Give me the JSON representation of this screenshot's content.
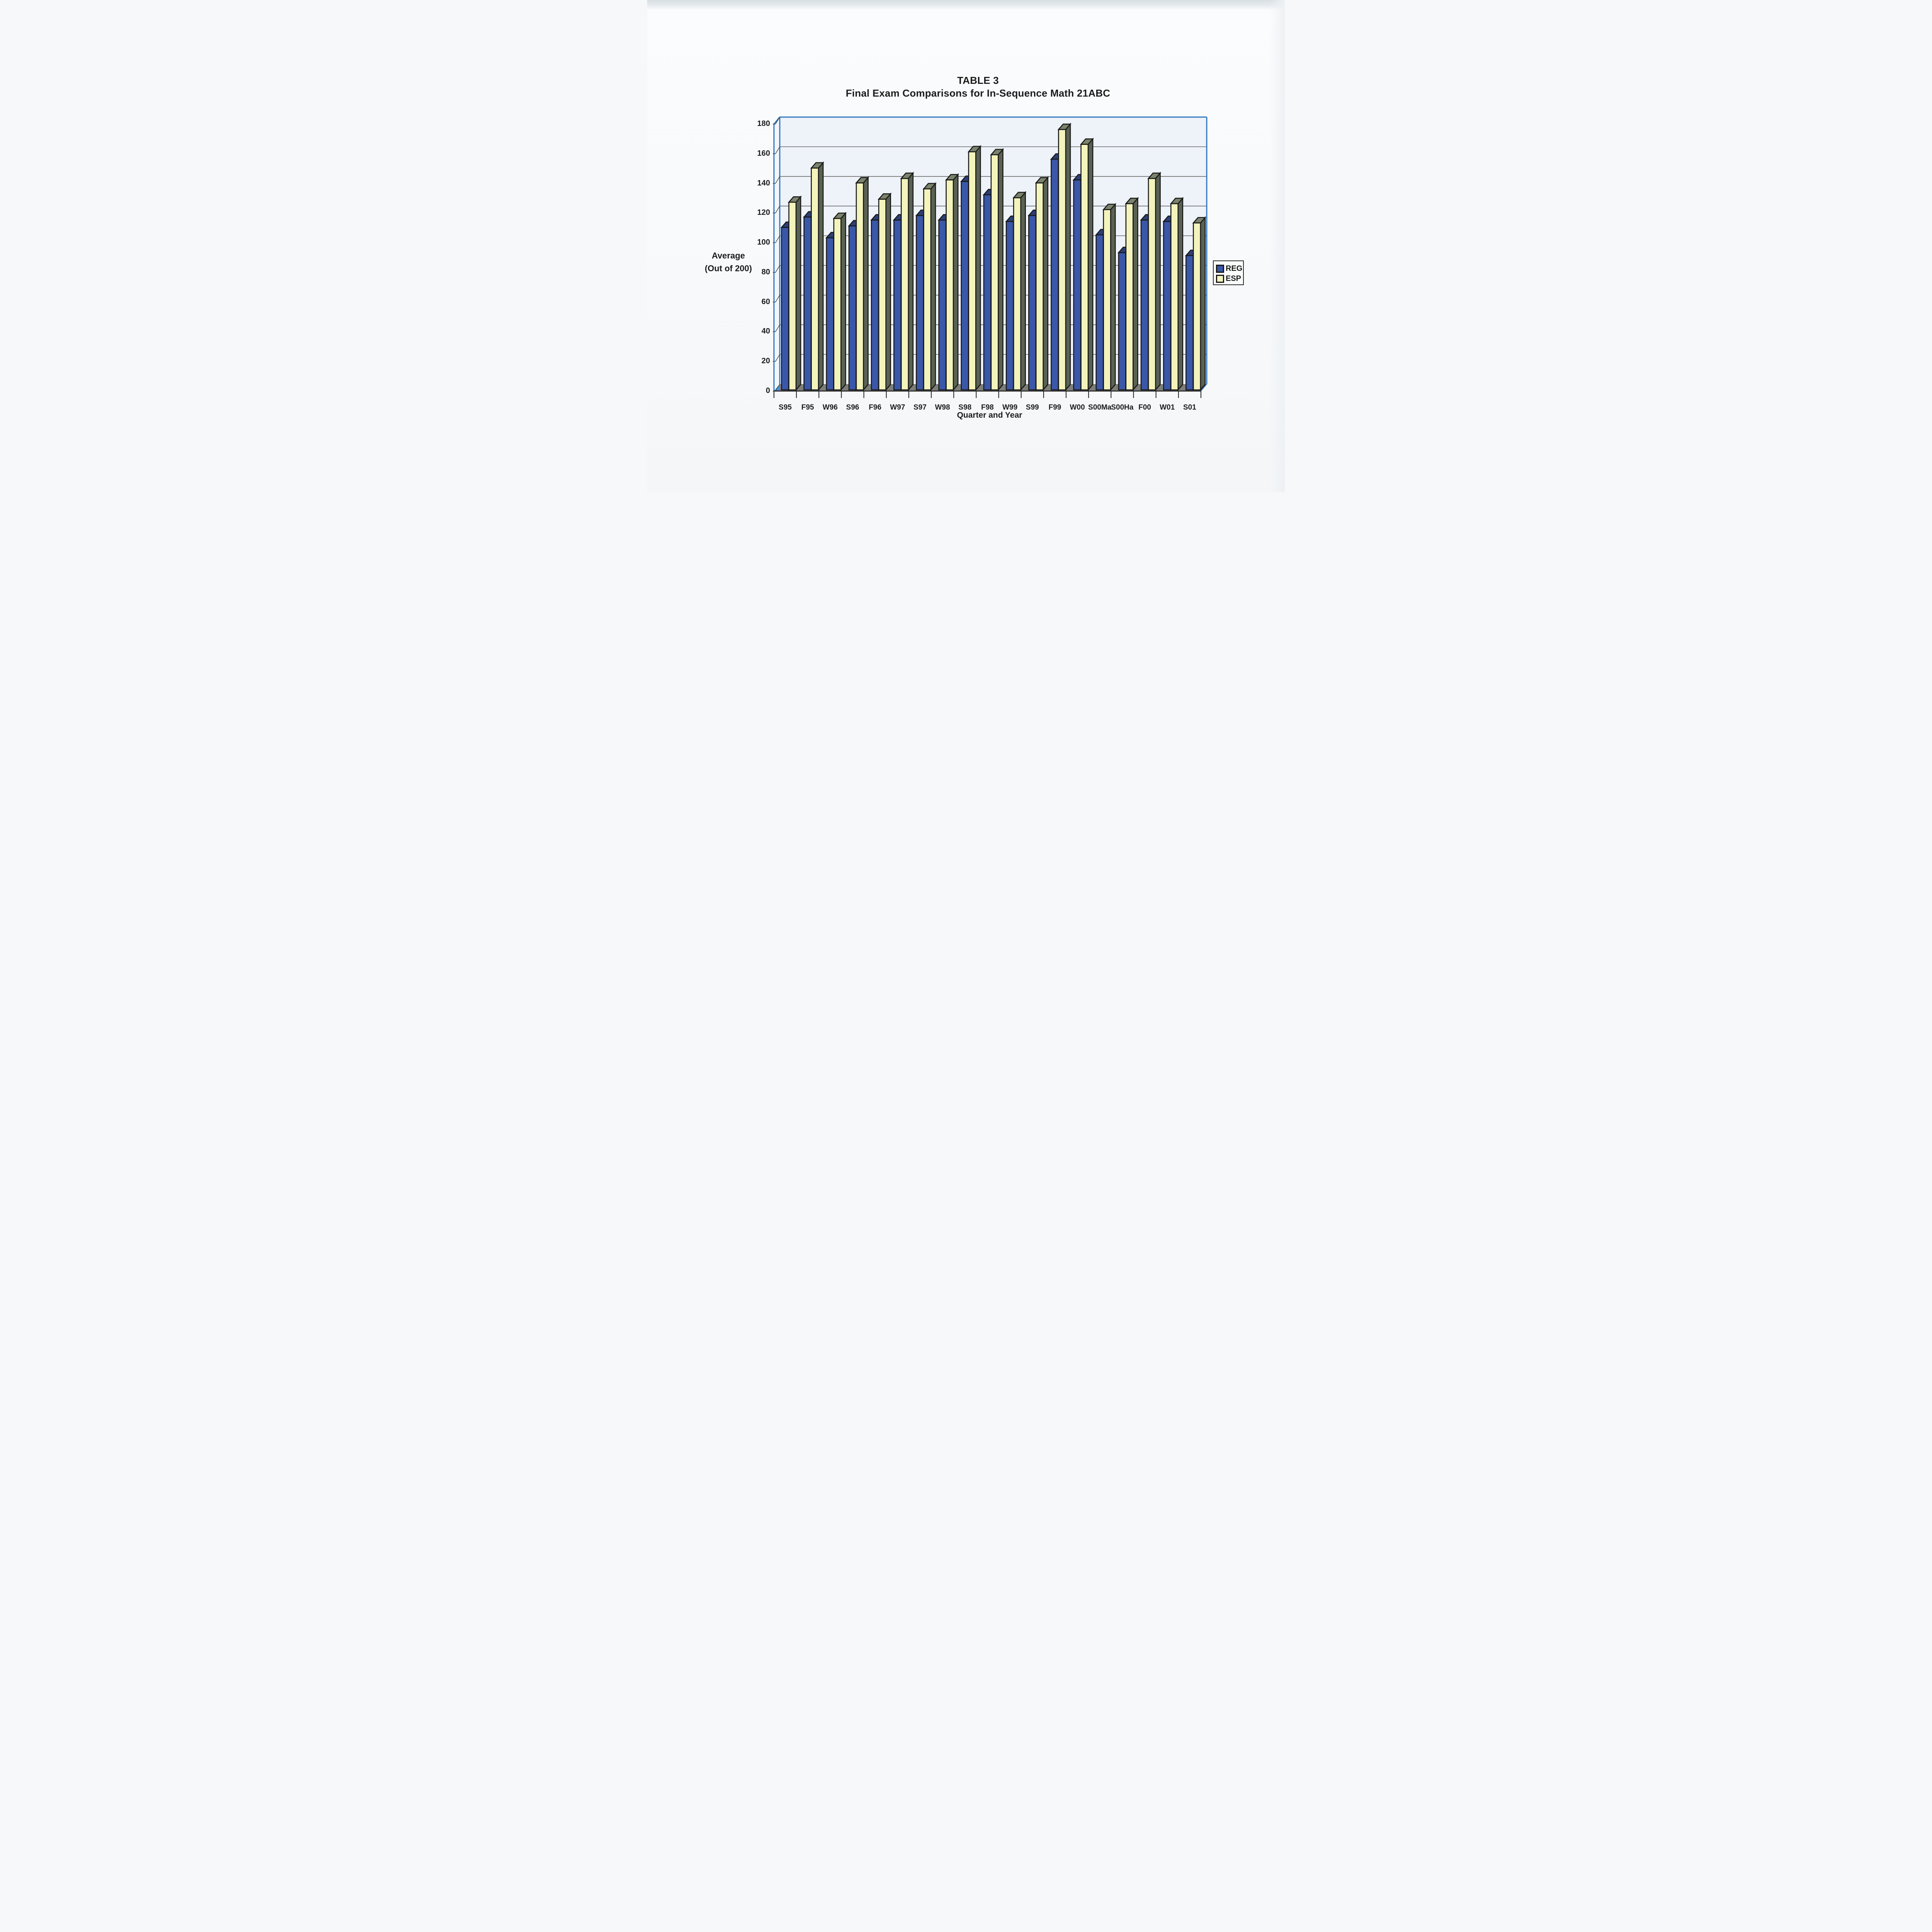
{
  "document": {
    "title_line1": "TABLE 3",
    "title_line2": "Final Exam Comparisons for In-Sequence Math 21ABC"
  },
  "chart_data": {
    "type": "bar",
    "style": "3d-column-scanned-excel",
    "title": "TABLE 3",
    "subtitle": "Final Exam Comparisons for In-Sequence Math 21ABC",
    "xlabel": "Quarter and Year",
    "ylabel": "Average (Out of 200)",
    "ylabel_lines": [
      "Average",
      "(Out of 200)"
    ],
    "ylim": [
      0,
      180
    ],
    "ytick_interval": 20,
    "yticks": [
      0,
      20,
      40,
      60,
      80,
      100,
      120,
      140,
      160,
      180
    ],
    "grid": true,
    "legend_position": "right",
    "categories": [
      "S95",
      "F95",
      "W96",
      "S96",
      "F96",
      "W97",
      "S97",
      "W98",
      "S98",
      "F98",
      "W99",
      "S99",
      "F99",
      "W00",
      "S00Ma",
      "S00Ha",
      "F00",
      "W01",
      "S01"
    ],
    "series": [
      {
        "name": "REG",
        "color": "#3a57a8",
        "values": [
          109,
          116,
          102,
          110,
          114,
          114,
          117,
          114,
          140,
          131,
          113,
          117,
          155,
          141,
          104,
          92,
          114,
          113,
          90
        ]
      },
      {
        "name": "ESP",
        "color": "#f3f3bc",
        "values": [
          126,
          149,
          115,
          139,
          128,
          142,
          135,
          141,
          160,
          158,
          129,
          139,
          175,
          165,
          121,
          125,
          142,
          125,
          112
        ]
      }
    ]
  },
  "legend": {
    "items": [
      {
        "label": "REG",
        "color": "#3a57a8"
      },
      {
        "label": "ESP",
        "color": "#f3f3bc"
      }
    ]
  },
  "colors": {
    "reg_front": "#3a57a8",
    "reg_side": "#243568",
    "reg_top": "#2c4078",
    "esp_front": "#f3f3bc",
    "esp_side": "#5a6253",
    "esp_top": "#7b836c",
    "outline": "#191919",
    "frame_blue": "#3077be",
    "floor": "#7e7e79",
    "corner_blue": "#4f93d6",
    "gridline": "#4a4a46",
    "wall": "#eef2f9",
    "sidewall": "#f2f6fa",
    "baseline": "#1f1f1f",
    "text": "#1c1c1c"
  }
}
